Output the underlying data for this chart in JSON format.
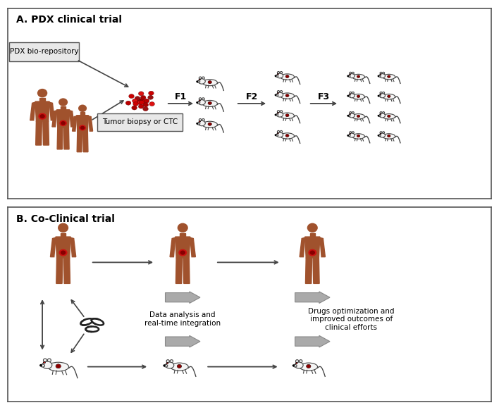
{
  "title_a": "A. PDX clinical trial",
  "title_b": "B. Co-Clinical trial",
  "pdx_box_label": "PDX bio-repository",
  "tumor_label": "Tumor biopsy or CTC",
  "f1_label": "F1",
  "f2_label": "F2",
  "f3_label": "F3",
  "data_analysis_label": "Data analysis and\nreal-time integration",
  "drugs_label": "Drugs optimization and\nimproved outcomes of\nclinical efforts",
  "human_color": "#A0522D",
  "mouse_fill": "#F5F5F5",
  "mouse_outline": "#444444",
  "tumor_red": "#CC1111",
  "tumor_dark": "#880000",
  "arrow_color": "#444444",
  "box_fill": "#E8E8E8",
  "box_edge": "#555555",
  "gray_arrow_fill": "#AAAAAA",
  "gray_arrow_edge": "#888888",
  "panel_bg": "#FFFFFF",
  "border_color": "#555555",
  "figure_bg": "#FFFFFF",
  "font_size_title": 10,
  "font_size_label": 7.5,
  "font_size_box": 7.5,
  "font_size_f": 9
}
